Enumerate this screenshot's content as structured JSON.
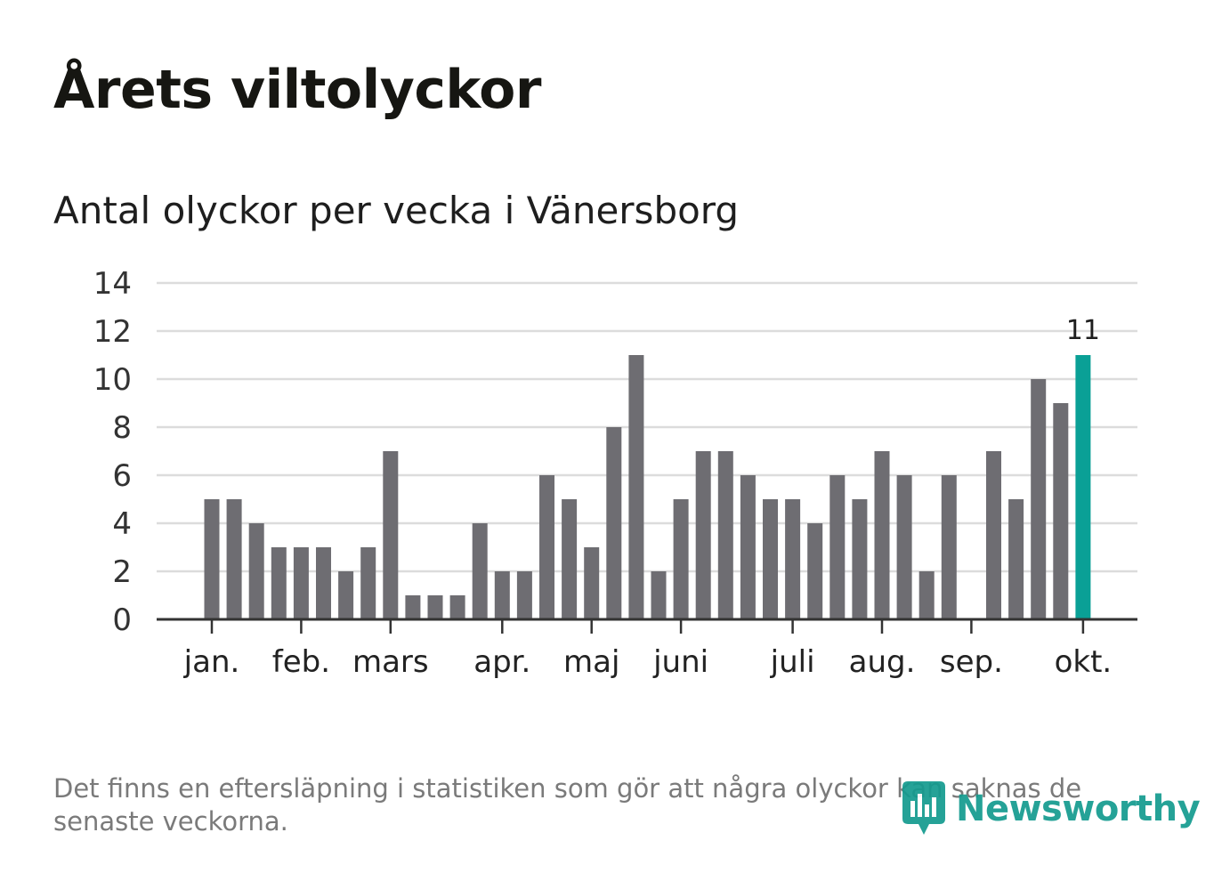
{
  "title": "Årets viltolyckor",
  "subtitle": "Antal olyckor per vecka i Vänersborg",
  "footnote": "Det finns en eftersläpning i statistiken som gör att några olyckor kan saknas de senaste veckorna.",
  "brand": {
    "name": "Newsworthy",
    "icon": "newsworthy-logo-icon",
    "color": "#139b8f"
  },
  "colors": {
    "bar": "#6e6d72",
    "highlight": "#0aa096",
    "grid": "#dcdcdc",
    "axis": "#333333"
  },
  "chart_data": {
    "type": "bar",
    "title": "Antal olyckor per vecka i Vänersborg",
    "xlabel": "",
    "ylabel": "",
    "ylim": [
      0,
      14
    ],
    "yticks": [
      0,
      2,
      4,
      6,
      8,
      10,
      12,
      14
    ],
    "grid": true,
    "weeks": [
      1,
      2,
      3,
      4,
      5,
      6,
      7,
      8,
      9,
      10,
      11,
      12,
      13,
      14,
      15,
      16,
      17,
      18,
      19,
      20,
      21,
      22,
      23,
      24,
      25,
      26,
      27,
      28,
      29,
      30,
      31,
      32,
      33,
      34,
      35,
      36,
      37,
      38,
      39,
      40
    ],
    "values": [
      5,
      5,
      4,
      3,
      3,
      3,
      2,
      3,
      7,
      1,
      1,
      1,
      4,
      2,
      2,
      6,
      5,
      3,
      8,
      11,
      2,
      5,
      7,
      7,
      6,
      5,
      5,
      4,
      6,
      5,
      7,
      6,
      2,
      6,
      0,
      7,
      5,
      10,
      9,
      11
    ],
    "highlight_index": 39,
    "highlight_label": "11",
    "month_ticks": [
      {
        "label": "jan.",
        "week": 1
      },
      {
        "label": "feb.",
        "week": 5
      },
      {
        "label": "mars",
        "week": 9
      },
      {
        "label": "apr.",
        "week": 14
      },
      {
        "label": "maj",
        "week": 18
      },
      {
        "label": "juni",
        "week": 22
      },
      {
        "label": "juli",
        "week": 27
      },
      {
        "label": "aug.",
        "week": 31
      },
      {
        "label": "sep.",
        "week": 35
      },
      {
        "label": "okt.",
        "week": 40
      }
    ]
  }
}
